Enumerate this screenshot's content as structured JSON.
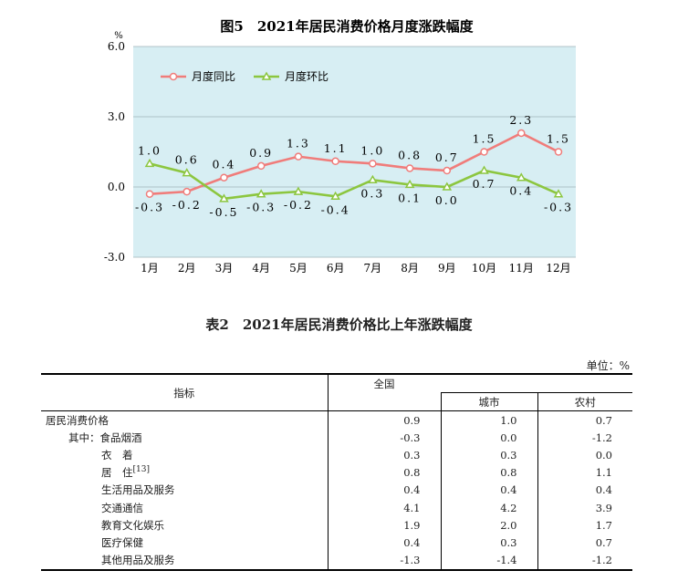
{
  "figure": {
    "title": "图5　2021年居民消费价格月度涨跌幅度",
    "y_unit": "%",
    "legend": {
      "yoy": "月度同比",
      "mom": "月度环比"
    }
  },
  "chart_data": {
    "type": "line",
    "categories": [
      "1月",
      "2月",
      "3月",
      "4月",
      "5月",
      "6月",
      "7月",
      "8月",
      "9月",
      "10月",
      "11月",
      "12月"
    ],
    "y_ticks": [
      "6.0",
      "3.0",
      "0.0",
      "-3.0"
    ],
    "ylim": [
      -3.0,
      6.0
    ],
    "legend_position": "top-left",
    "series": [
      {
        "name": "月度同比",
        "color": "#f07c7a",
        "values": [
          -0.3,
          -0.2,
          0.4,
          0.9,
          1.3,
          1.1,
          1.0,
          0.8,
          0.7,
          1.5,
          2.3,
          1.5
        ],
        "labels": [
          "-0.3",
          "-0.2",
          "0.4",
          "0.9",
          "1.3",
          "1.1",
          "1.0",
          "0.8",
          "0.7",
          "1.5",
          "2.3",
          "1.5"
        ]
      },
      {
        "name": "月度环比",
        "color": "#8cc63f",
        "values": [
          1.0,
          0.6,
          -0.5,
          -0.3,
          -0.2,
          -0.4,
          0.3,
          0.1,
          0.0,
          0.7,
          0.4,
          -0.3
        ],
        "labels": [
          "1.0",
          "0.6",
          "-0.5",
          "-0.3",
          "-0.2",
          "-0.4",
          "0.3",
          "0.1",
          "0.0",
          "0.7",
          "0.4",
          "-0.3"
        ]
      }
    ]
  },
  "table": {
    "title": "表2　2021年居民消费价格比上年涨跌幅度",
    "unit": "单位：%",
    "headers": {
      "indicator": "指标",
      "national": "全国",
      "urban": "城市",
      "rural": "农村"
    },
    "rows": [
      {
        "name": "居民消费价格",
        "nat": "0.9",
        "urb": "1.0",
        "rur": "0.7"
      },
      {
        "name": "其中：食品烟酒",
        "nat": "-0.3",
        "urb": "0.0",
        "rur": "-1.2"
      },
      {
        "name": "衣　着",
        "nat": "0.3",
        "urb": "0.3",
        "rur": "0.0"
      },
      {
        "name": "居　住",
        "note": "[13]",
        "nat": "0.8",
        "urb": "0.8",
        "rur": "1.1"
      },
      {
        "name": "生活用品及服务",
        "nat": "0.4",
        "urb": "0.4",
        "rur": "0.4"
      },
      {
        "name": "交通通信",
        "nat": "4.1",
        "urb": "4.2",
        "rur": "3.9"
      },
      {
        "name": "教育文化娱乐",
        "nat": "1.9",
        "urb": "2.0",
        "rur": "1.7"
      },
      {
        "name": "医疗保健",
        "nat": "0.4",
        "urb": "0.3",
        "rur": "0.7"
      },
      {
        "name": "其他用品及服务",
        "nat": "-1.3",
        "urb": "-1.4",
        "rur": "-1.2"
      }
    ]
  }
}
